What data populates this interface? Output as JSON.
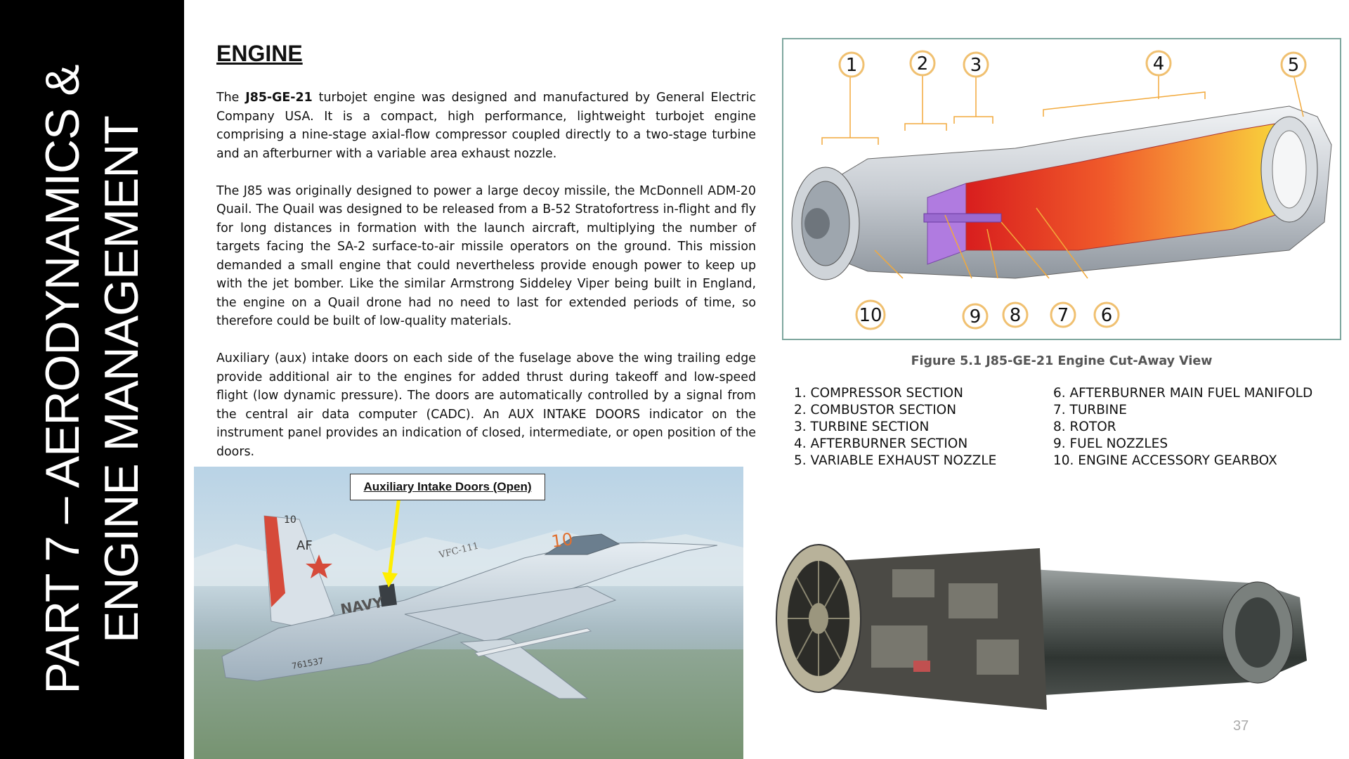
{
  "sidebar": {
    "line1": "PART 7 – AERODYNAMICS &",
    "line2": "ENGINE MANAGEMENT"
  },
  "section_title": "ENGINE",
  "paragraphs": {
    "p1_pre": "The ",
    "p1_bold": "J85-GE-21",
    "p1_post": " turbojet engine was designed and manufactured by General Electric Company USA. It is a compact, high performance, lightweight turbojet engine comprising a nine-stage axial-flow compressor coupled directly to a two-stage turbine and an afterburner with a variable area exhaust nozzle.",
    "p2": "The J85 was originally designed to power a large decoy missile, the McDonnell ADM-20 Quail. The Quail was designed to be released from a B-52 Stratofortress in-flight and fly for long distances in formation with the launch aircraft, multiplying the number of targets facing the SA-2 surface-to-air missile operators on the ground. This mission demanded a small engine that could nevertheless provide enough power to keep up with the jet bomber. Like the similar Armstrong Siddeley Viper being built in England, the engine on a Quail drone had no need to last for extended periods of time, so therefore could be built of low-quality materials.",
    "p3": "Auxiliary (aux) intake doors on each side of the fuselage above the wing trailing edge provide additional air to the engines for added thrust during takeoff and low-speed flight (low dynamic pressure). The doors are automatically controlled by a signal from the central air data computer (CADC). An AUX INTAKE DOORS indicator on the instrument panel provides an indication of closed, intermediate, or open position of the doors."
  },
  "photo": {
    "label": "Auxiliary Intake Doors (Open)",
    "tail_code": "10",
    "tail_mark": "AF",
    "nose_number": "10",
    "fuselage_text": "NAVY",
    "squadron": "VFC-111",
    "serial": "761537"
  },
  "figure": {
    "caption": "Figure 5.1 J85-GE-21 Engine Cut-Away View",
    "callouts": [
      "1",
      "2",
      "3",
      "4",
      "5",
      "6",
      "7",
      "8",
      "9",
      "10"
    ]
  },
  "legend": {
    "left": [
      "1. COMPRESSOR SECTION",
      "2. COMBUSTOR SECTION",
      "3. TURBINE SECTION",
      "4. AFTERBURNER SECTION",
      "5. VARIABLE EXHAUST NOZZLE"
    ],
    "right": [
      "6. AFTERBURNER MAIN FUEL MANIFOLD",
      "7. TURBINE",
      "8. ROTOR",
      "9. FUEL NOZZLES",
      "10. ENGINE ACCESSORY GEARBOX"
    ]
  },
  "page_number": "37",
  "colors": {
    "sidebar_bg": "#000000",
    "callout_ring": "#f0c070",
    "frame": "#7fa79f",
    "leader": "#f2a93b"
  }
}
